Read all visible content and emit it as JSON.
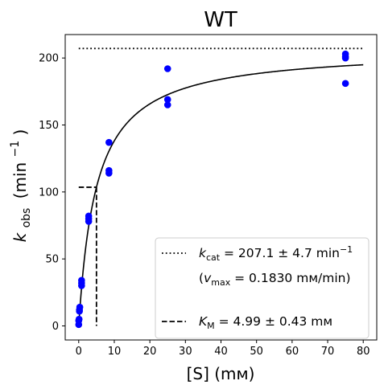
{
  "chart_data": {
    "type": "scatter",
    "title": "WT",
    "xlabel": "[S] (mм)",
    "ylabel": {
      "main": "k",
      "sub": "obs",
      "unit": "(min",
      "sup": "−1",
      "close": ")"
    },
    "xlim": [
      -3.8,
      83.8
    ],
    "ylim": [
      -10.5,
      217.5
    ],
    "xticks": [
      0,
      10,
      20,
      30,
      40,
      50,
      60,
      70,
      80
    ],
    "xtick_labels": [
      "0",
      "10",
      "20",
      "30",
      "40",
      "50",
      "60",
      "70",
      "80"
    ],
    "yticks": [
      0,
      50,
      100,
      150,
      200
    ],
    "ytick_labels": [
      "0",
      "50",
      "100",
      "150",
      "200"
    ],
    "grid": false,
    "legend_position": "lower right",
    "point_color": "#0000ff",
    "line_color": "#000000",
    "points": [
      {
        "x": 0.0,
        "y": 1
      },
      {
        "x": 0.0,
        "y": 4
      },
      {
        "x": 0.1,
        "y": 5
      },
      {
        "x": 0.2,
        "y": 11
      },
      {
        "x": 0.2,
        "y": 12
      },
      {
        "x": 0.3,
        "y": 14
      },
      {
        "x": 0.8,
        "y": 30
      },
      {
        "x": 0.8,
        "y": 32
      },
      {
        "x": 0.8,
        "y": 34
      },
      {
        "x": 2.8,
        "y": 78
      },
      {
        "x": 2.8,
        "y": 80
      },
      {
        "x": 2.8,
        "y": 82
      },
      {
        "x": 8.5,
        "y": 114
      },
      {
        "x": 8.5,
        "y": 116
      },
      {
        "x": 8.5,
        "y": 137
      },
      {
        "x": 25,
        "y": 165
      },
      {
        "x": 25,
        "y": 169
      },
      {
        "x": 25,
        "y": 192
      },
      {
        "x": 75,
        "y": 181
      },
      {
        "x": 75,
        "y": 200
      },
      {
        "x": 75,
        "y": 201
      },
      {
        "x": 75,
        "y": 203
      }
    ],
    "fit": {
      "kcat": 207.1,
      "km": 4.99,
      "x_range": [
        0,
        80
      ]
    },
    "kcat_line": {
      "y": 207.1,
      "x_range": [
        0,
        80
      ]
    },
    "km_marker": {
      "x": 4.99,
      "y": 103.55,
      "x_start": 0
    },
    "legend": [
      {
        "style": "dotted",
        "symbol": "k",
        "sub": "cat",
        "text": " = 207.1 ± 4.7 min",
        "sup": "−1"
      },
      {
        "style": "none",
        "prefix": "(",
        "symbol": "v",
        "sub": "max",
        "text": " = 0.1830 mм/min)"
      },
      {
        "style": "dashed",
        "symbol": "K",
        "sub": "M",
        "text": " = 4.99 ± 0.43 mм"
      }
    ]
  }
}
